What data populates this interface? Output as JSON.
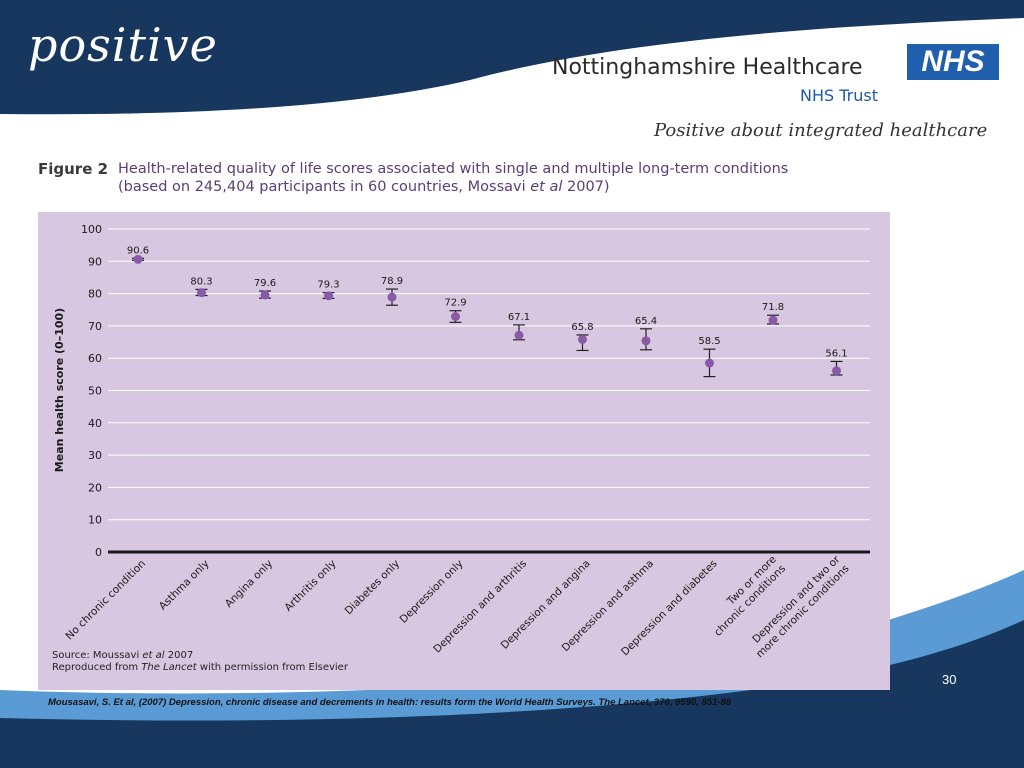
{
  "brand": {
    "logo_text": "positive",
    "org_name": "Nottinghamshire Healthcare",
    "org_sub": "NHS Trust",
    "nhs_logo": "NHS",
    "tagline": "Positive about integrated healthcare"
  },
  "figure": {
    "label": "Figure 2",
    "title_line1": "Health-related quality of life scores associated with single and multiple long-term conditions",
    "title_line2_pre": "(based on 245,404 participants in 60 countries, Mossavi ",
    "title_line2_italic": "et al",
    "title_line2_post": " 2007)",
    "source_pre": "Source: Moussavi ",
    "source_italic": "et al",
    "source_post": " 2007",
    "repro_pre": "Reproduced from ",
    "repro_italic": "The Lancet",
    "repro_post": " with permission from Elsevier"
  },
  "chart_data": {
    "type": "scatter",
    "ylabel": "Mean health score (0–100)",
    "ylim": [
      0,
      100
    ],
    "yticks": [
      "0",
      "10",
      "20",
      "30",
      "40",
      "50",
      "60",
      "70",
      "80",
      "90",
      "100"
    ],
    "grid": true,
    "categories": [
      "No chronic condition",
      "Asthma only",
      "Angina only",
      "Arthritis only",
      "Diabetes only",
      "Depression only",
      "Depression and arthritis",
      "Depression and angina",
      "Depression and asthma",
      "Depression and diabetes",
      "Two or more|chronic conditions",
      "Depression and two or|more chronic conditions"
    ],
    "values": [
      90.6,
      80.3,
      79.6,
      79.3,
      78.9,
      72.9,
      67.1,
      65.8,
      65.4,
      58.5,
      71.8,
      56.1
    ],
    "value_labels": [
      "90.6",
      "80.3",
      "79.6",
      "79.3",
      "78.9",
      "72.9",
      "67.1",
      "65.8",
      "65.4",
      "58.5",
      "71.8",
      "56.1"
    ],
    "error_low": [
      90.3,
      79.4,
      78.6,
      78.5,
      76.4,
      71.1,
      65.7,
      62.4,
      62.6,
      54.3,
      70.6,
      54.8
    ],
    "error_high": [
      90.9,
      81.3,
      80.8,
      80.3,
      81.4,
      74.7,
      70.3,
      67.2,
      69.1,
      62.8,
      73.3,
      59.0
    ],
    "colors": {
      "background": "#d8c7e0",
      "marker": "#8a5aa8",
      "axis": "#1a1a1a",
      "grid": "#ffffff"
    }
  },
  "footer": {
    "slide_number": "30",
    "citation": "Mousasavi, S. Et al, (2007) Depression, chronic disease and decrements in health: results form the World Health Surveys. The Lancet, 370, 9590, 851-88"
  }
}
